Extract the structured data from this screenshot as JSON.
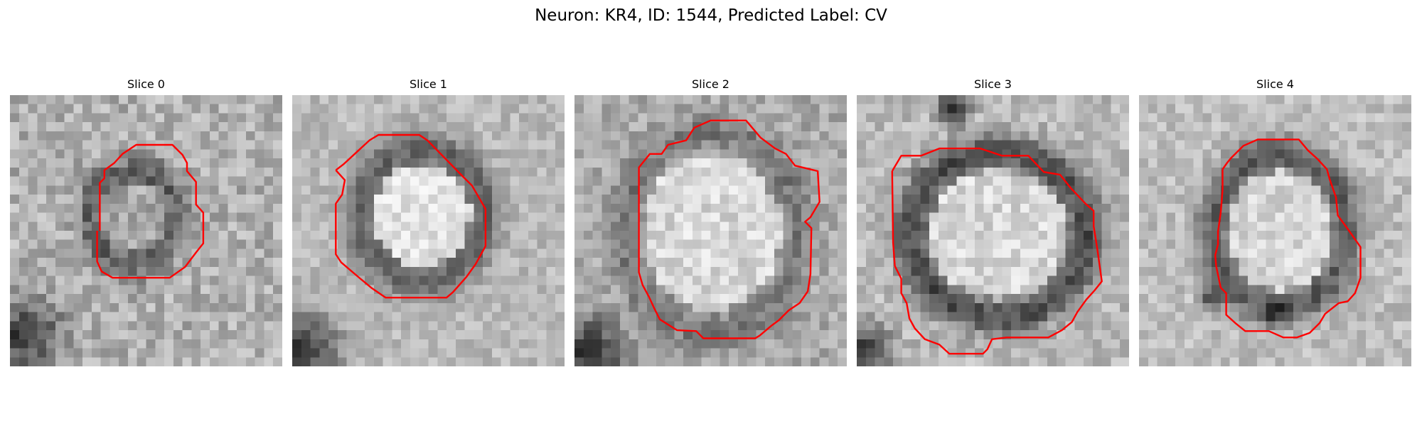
{
  "figure": {
    "title": "Neuron: KR4, ID: 1544, Predicted Label: CV"
  },
  "slices": [
    {
      "title": "Slice 0",
      "contour_color": "#ff0000"
    },
    {
      "title": "Slice 1",
      "contour_color": "#ff0000"
    },
    {
      "title": "Slice 2",
      "contour_color": "#ff0000"
    },
    {
      "title": "Slice 3",
      "contour_color": "#ff0000"
    },
    {
      "title": "Slice 4",
      "contour_color": "#ff0000"
    }
  ],
  "colormap": "gray"
}
